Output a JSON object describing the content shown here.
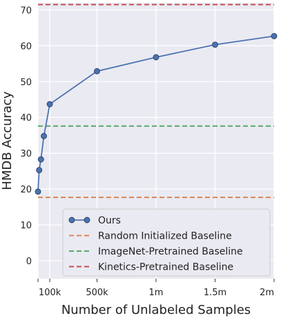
{
  "chart_data": {
    "type": "line",
    "xlabel": "Number of Unlabeled Samples",
    "ylabel": "HMDB Accuracy",
    "xlim": [
      0,
      2000000
    ],
    "ylim": [
      -5,
      72
    ],
    "x_ticks": [
      {
        "value": 0,
        "label": ""
      },
      {
        "value": 100000,
        "label": "100k"
      },
      {
        "value": 500000,
        "label": "500k"
      },
      {
        "value": 1000000,
        "label": "1m"
      },
      {
        "value": 1500000,
        "label": "1.5m"
      },
      {
        "value": 2000000,
        "label": "2m"
      }
    ],
    "y_ticks": [
      0,
      10,
      20,
      30,
      40,
      50,
      60,
      70
    ],
    "grid": true,
    "background": "#eaeaf2",
    "legend_position": "bottom-right",
    "series": [
      {
        "name": "Ours",
        "kind": "line-markers",
        "color": "#4c72b0",
        "x": [
          0,
          10000,
          25000,
          50000,
          100000,
          500000,
          1000000,
          1500000,
          2000000
        ],
        "y": [
          19.3,
          25.3,
          28.3,
          34.8,
          43.7,
          52.9,
          56.8,
          60.3,
          62.7
        ]
      },
      {
        "name": "Random Initialized Baseline",
        "kind": "hline",
        "color": "#dd8452",
        "y": 17.7
      },
      {
        "name": "ImageNet-Pretrained Baseline",
        "kind": "hline",
        "color": "#55a868",
        "y": 37.6
      },
      {
        "name": "Kinetics-Pretrained Baseline",
        "kind": "hline",
        "color": "#c44e52",
        "y": 71.5
      }
    ]
  }
}
